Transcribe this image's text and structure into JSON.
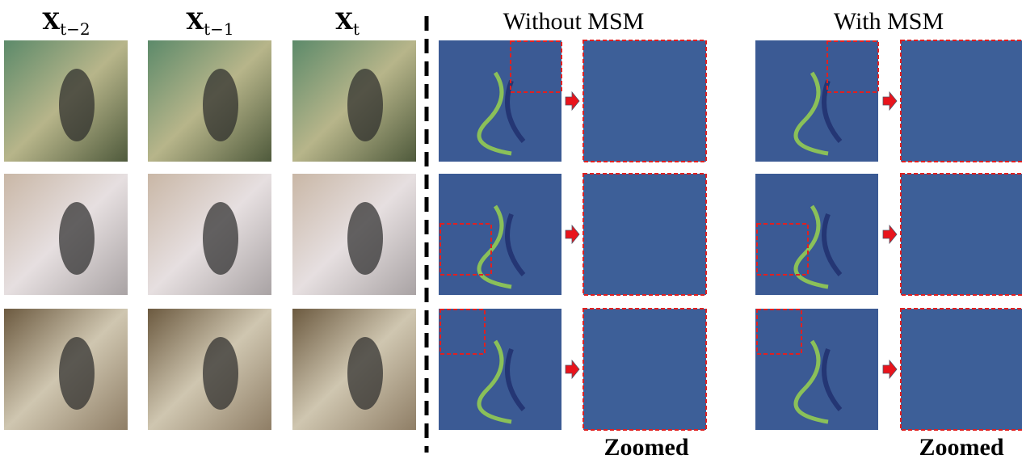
{
  "figure": {
    "frame_headers": [
      {
        "symbol": "X",
        "subscript": "t−2"
      },
      {
        "symbol": "X",
        "subscript": "t−1"
      },
      {
        "symbol": "X",
        "subscript": "t"
      }
    ],
    "group_headers": [
      "Without MSM",
      "With MSM"
    ],
    "zoom_labels": [
      "Zoomed",
      "Zoomed"
    ]
  }
}
